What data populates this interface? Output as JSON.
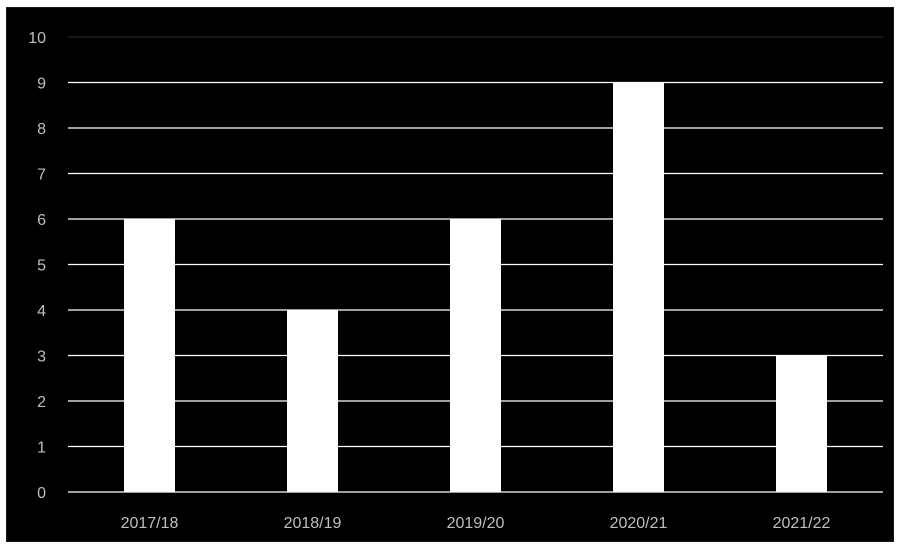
{
  "chart_data": {
    "type": "bar",
    "categories": [
      "2017/18",
      "2018/19",
      "2019/20",
      "2020/21",
      "2021/22"
    ],
    "values": [
      6,
      4,
      6,
      9,
      3
    ],
    "title": "",
    "xlabel": "",
    "ylabel": "",
    "ylim": [
      0,
      10
    ],
    "yticks": [
      "0",
      "1",
      "2",
      "3",
      "4",
      "5",
      "6",
      "7",
      "8",
      "9",
      "10"
    ],
    "grid": true,
    "legend": "none"
  },
  "colors": {
    "background": "#000000",
    "bar": "#ffffff",
    "gridline": "#ffffff",
    "tick_text": "#bfbfbf"
  }
}
